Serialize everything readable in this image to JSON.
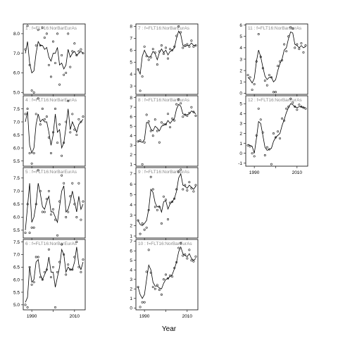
{
  "chart_data": [
    {
      "panel": "1",
      "type": "scatter",
      "title": "1 : f=FLT16:NorBarEurAs",
      "ylim": [
        4.9,
        8.5
      ],
      "yticks": [
        5.0,
        6.0,
        7.0,
        8.0
      ],
      "ytick_labels": [
        "5.0",
        "6.0",
        "7.0",
        "8.0"
      ],
      "x": [
        1987,
        1988,
        1989,
        1990,
        1991,
        1992,
        1993,
        1994,
        1995,
        1996,
        1997,
        1998,
        1999,
        2000,
        2001,
        2002,
        2003,
        2004,
        2005,
        2006,
        2007,
        2008,
        2009,
        2010,
        2011,
        2012,
        2013,
        2014
      ],
      "y": [
        7.2,
        8.4,
        6.4,
        5.1,
        5.0,
        7.4,
        8.2,
        7.4,
        8.3,
        7.8,
        8.0,
        6.4,
        5.8,
        7.6,
        6.5,
        8.0,
        5.4,
        6.9,
        5.9,
        6.0,
        8.0,
        6.3,
        7.1,
        7.5,
        6.9,
        7.1,
        7.2,
        7.0
      ],
      "fit": [
        7.0,
        7.6,
        6.5,
        6.0,
        6.1,
        7.0,
        7.6,
        7.4,
        7.4,
        7.2,
        7.3,
        6.8,
        6.6,
        7.0,
        7.0,
        7.3,
        6.4,
        6.5,
        6.2,
        6.4,
        7.2,
        6.8,
        7.0,
        7.1,
        6.9,
        7.0,
        7.1,
        7.0
      ]
    },
    {
      "panel": "4",
      "type": "scatter",
      "title": "4 : f=FLT16:NorBarEurAs",
      "ylim": [
        5.3,
        8.0
      ],
      "yticks": [
        5.5,
        6.0,
        6.5,
        7.0,
        7.5
      ],
      "ytick_labels": [
        "5.5",
        "6.0",
        "6.5",
        "7.0",
        "7.5"
      ],
      "x": [
        1987,
        1988,
        1989,
        1990,
        1991,
        1992,
        1993,
        1994,
        1995,
        1996,
        1997,
        1998,
        1999,
        2000,
        2001,
        2002,
        2003,
        2004,
        2005,
        2006,
        2007,
        2008,
        2009,
        2010,
        2011,
        2012,
        2013,
        2014
      ],
      "y": [
        7.3,
        7.5,
        5.8,
        5.4,
        5.8,
        7.3,
        7.9,
        6.9,
        7.5,
        7.1,
        7.2,
        6.4,
        5.8,
        6.6,
        7.5,
        6.2,
        6.9,
        5.7,
        6.2,
        7.0,
        7.8,
        6.6,
        7.3,
        6.7,
        6.5,
        7.1,
        7.0,
        7.2
      ],
      "fit": [
        7.0,
        7.4,
        6.1,
        5.8,
        6.0,
        6.9,
        7.3,
        7.0,
        7.1,
        7.0,
        7.0,
        6.6,
        6.1,
        6.5,
        7.3,
        6.6,
        6.7,
        6.0,
        6.2,
        6.8,
        7.5,
        6.7,
        7.0,
        6.8,
        6.6,
        6.9,
        7.0,
        7.1
      ]
    },
    {
      "panel": "5",
      "type": "scatter",
      "title": "5 : f=FLT16:NorBarEurAs",
      "ylim": [
        5.2,
        7.9
      ],
      "yticks": [
        5.5,
        6.0,
        6.5,
        7.0,
        7.5
      ],
      "ytick_labels": [
        "5.5",
        "6.0",
        "6.5",
        "7.0",
        "7.5"
      ],
      "x": [
        1987,
        1988,
        1989,
        1990,
        1991,
        1992,
        1993,
        1994,
        1995,
        1996,
        1997,
        1998,
        1999,
        2000,
        2001,
        2002,
        2003,
        2004,
        2005,
        2006,
        2007,
        2008,
        2009,
        2010,
        2011,
        2012,
        2013,
        2014
      ],
      "y": [
        5.4,
        6.5,
        5.4,
        5.6,
        5.6,
        6.5,
        7.8,
        7.0,
        6.2,
        6.2,
        6.7,
        7.0,
        6.1,
        6.3,
        5.9,
        5.3,
        6.6,
        7.6,
        7.3,
        6.0,
        6.2,
        6.8,
        7.3,
        6.5,
        6.0,
        7.3,
        5.9,
        6.6
      ],
      "fit": [
        5.5,
        6.4,
        7.3,
        5.8,
        6.0,
        6.5,
        7.3,
        6.9,
        6.4,
        6.3,
        6.6,
        6.8,
        6.2,
        6.2,
        6.0,
        5.8,
        6.4,
        7.0,
        7.2,
        6.2,
        6.3,
        6.6,
        7.0,
        6.6,
        6.2,
        6.8,
        6.3,
        6.5
      ]
    },
    {
      "panel": "6",
      "type": "scatter",
      "title": "6 : f=FLT16:NorBarEurAs",
      "ylim": [
        4.8,
        7.6
      ],
      "yticks": [
        5.0,
        5.5,
        6.0,
        6.5,
        7.0,
        7.5
      ],
      "ytick_labels": [
        "5.0",
        "5.5",
        "6.0",
        "6.5",
        "7.0",
        "7.5"
      ],
      "x": [
        1987,
        1988,
        1989,
        1990,
        1991,
        1992,
        1993,
        1994,
        1995,
        1996,
        1997,
        1998,
        1999,
        2000,
        2001,
        2002,
        2003,
        2004,
        2005,
        2006,
        2007,
        2008,
        2009,
        2010,
        2011,
        2012,
        2013,
        2014
      ],
      "y": [
        5.0,
        4.9,
        6.5,
        5.8,
        5.9,
        6.9,
        6.9,
        6.1,
        6.0,
        6.3,
        6.4,
        7.2,
        6.1,
        6.5,
        4.9,
        6.3,
        6.7,
        7.4,
        7.0,
        6.2,
        6.6,
        6.4,
        6.4,
        6.9,
        7.5,
        6.5,
        6.3,
        6.8
      ],
      "fit": [
        5.1,
        5.3,
        6.5,
        5.9,
        6.0,
        6.7,
        6.8,
        6.2,
        6.0,
        6.2,
        6.4,
        6.9,
        6.3,
        6.3,
        5.7,
        6.1,
        6.5,
        7.2,
        7.0,
        6.3,
        6.5,
        6.4,
        6.4,
        6.7,
        7.3,
        6.6,
        6.4,
        6.7
      ]
    },
    {
      "panel": "7",
      "type": "scatter",
      "title": "7 : f=FLT16:NorBarEurAs",
      "ylim": [
        2.3,
        8.2
      ],
      "yticks": [
        3,
        4,
        5,
        6,
        7,
        8
      ],
      "ytick_labels": [
        "3",
        "4",
        "5",
        "6",
        "7",
        "8"
      ],
      "x": [
        1987,
        1988,
        1989,
        1990,
        1991,
        1992,
        1993,
        1994,
        1995,
        1996,
        1997,
        1998,
        1999,
        2000,
        2001,
        2002,
        2003,
        2004,
        2005,
        2006,
        2007,
        2008,
        2009,
        2010,
        2011,
        2012,
        2013,
        2014
      ],
      "y": [
        4.4,
        2.6,
        3.8,
        6.3,
        5.5,
        5.2,
        5.4,
        6.1,
        5.8,
        4.8,
        5.9,
        6.4,
        5.7,
        6.2,
        5.3,
        6.1,
        6.0,
        6.3,
        7.2,
        8.0,
        7.5,
        6.2,
        6.4,
        6.5,
        6.3,
        6.8,
        6.3,
        6.4
      ],
      "fit": [
        4.4,
        4.0,
        5.5,
        6.0,
        5.6,
        5.4,
        5.5,
        5.9,
        5.7,
        5.2,
        5.8,
        6.1,
        5.8,
        6.0,
        5.6,
        5.9,
        6.0,
        6.2,
        7.0,
        7.6,
        7.3,
        6.4,
        6.3,
        6.4,
        6.4,
        6.6,
        6.4,
        6.4
      ]
    },
    {
      "panel": "8",
      "type": "scatter",
      "title": "8 : f=FLT16:NorBarEurAs",
      "ylim": [
        0.8,
        8.2
      ],
      "yticks": [
        1,
        2,
        3,
        4,
        5,
        6,
        7,
        8
      ],
      "ytick_labels": [
        "1",
        "2",
        "3",
        "4",
        "5",
        "6",
        "7",
        "8"
      ],
      "x": [
        1987,
        1988,
        1989,
        1990,
        1991,
        1992,
        1993,
        1994,
        1995,
        1996,
        1997,
        1998,
        1999,
        2000,
        2001,
        2002,
        2003,
        2004,
        2005,
        2006,
        2007,
        2008,
        2009,
        2010,
        2011,
        2012,
        2013,
        2014
      ],
      "y": [
        3.4,
        3.5,
        1.0,
        3.3,
        6.2,
        5.5,
        4.5,
        4.0,
        5.7,
        4.5,
        3.3,
        5.4,
        5.2,
        5.2,
        6.3,
        4.9,
        5.8,
        5.6,
        7.3,
        7.8,
        7.4,
        6.0,
        6.2,
        6.1,
        6.4,
        7.0,
        6.5,
        6.1
      ],
      "fit": [
        3.4,
        3.4,
        3.3,
        3.6,
        5.4,
        5.3,
        4.7,
        4.5,
        5.0,
        4.8,
        4.5,
        5.0,
        5.1,
        5.2,
        5.6,
        5.3,
        5.6,
        5.8,
        6.8,
        7.3,
        7.1,
        6.3,
        6.2,
        6.2,
        6.3,
        6.6,
        6.5,
        6.3
      ]
    },
    {
      "panel": "9",
      "type": "scatter",
      "title": "9 : f=FLT16:NorBarEurAs",
      "ylim": [
        0.8,
        7.6
      ],
      "yticks": [
        1,
        2,
        3,
        4,
        5,
        6,
        7
      ],
      "ytick_labels": [
        "1",
        "2",
        "3",
        "4",
        "5",
        "6",
        "7"
      ],
      "x": [
        1987,
        1988,
        1989,
        1990,
        1991,
        1992,
        1993,
        1994,
        1995,
        1996,
        1997,
        1998,
        1999,
        2000,
        2001,
        2002,
        2003,
        2004,
        2005,
        2006,
        2007,
        2008,
        2009,
        2010,
        2011,
        2012,
        2013,
        2014
      ],
      "y": [
        2.5,
        1.2,
        2.2,
        1.6,
        1.8,
        3.5,
        6.7,
        5.5,
        3.8,
        3.5,
        3.8,
        2.2,
        4.8,
        4.5,
        2.6,
        4.2,
        4.3,
        4.6,
        5.5,
        7.2,
        7.4,
        5.5,
        5.9,
        5.4,
        6.2,
        5.6,
        5.3,
        5.9
      ],
      "fit": [
        2.5,
        2.1,
        2.0,
        2.2,
        2.5,
        3.6,
        5.5,
        5.2,
        4.2,
        3.8,
        3.9,
        3.3,
        4.3,
        4.4,
        3.6,
        4.1,
        4.3,
        4.6,
        5.3,
        6.6,
        7.0,
        5.9,
        5.8,
        5.6,
        5.9,
        5.7,
        5.5,
        5.8
      ]
    },
    {
      "panel": "10",
      "type": "scatter",
      "title": "10 : f=FLT16:NorBarEurAs",
      "ylim": [
        -0.2,
        7.2
      ],
      "yticks": [
        0,
        1,
        2,
        3,
        4,
        5,
        6,
        7
      ],
      "ytick_labels": [
        "0",
        "1",
        "2",
        "3",
        "4",
        "5",
        "6",
        "7"
      ],
      "x": [
        1987,
        1988,
        1989,
        1990,
        1991,
        1992,
        1993,
        1994,
        1995,
        1996,
        1997,
        1998,
        1999,
        2000,
        2001,
        2002,
        2003,
        2004,
        2005,
        2006,
        2007,
        2008,
        2009,
        2010,
        2011,
        2012,
        2013,
        2014
      ],
      "y": [
        2.2,
        0.1,
        0.6,
        0.6,
        3.8,
        6.1,
        3.7,
        2.2,
        2.0,
        2.4,
        1.9,
        1.4,
        3.0,
        3.5,
        3.1,
        3.4,
        3.3,
        4.2,
        4.8,
        6.3,
        6.8,
        5.5,
        5.6,
        5.2,
        6.1,
        5.0,
        4.9,
        5.4
      ],
      "fit": [
        2.2,
        1.4,
        1.0,
        1.4,
        3.0,
        4.5,
        4.0,
        2.7,
        2.3,
        2.3,
        2.1,
        2.0,
        2.6,
        3.0,
        3.1,
        3.3,
        3.5,
        4.1,
        4.8,
        5.9,
        6.4,
        5.7,
        5.5,
        5.4,
        5.7,
        5.2,
        5.0,
        5.2
      ]
    },
    {
      "panel": "11",
      "type": "scatter",
      "title": "11 : f=FLT16:NorBarEurAs",
      "ylim": [
        -0.1,
        6.1
      ],
      "yticks": [
        0,
        1,
        2,
        3,
        4,
        5,
        6
      ],
      "ytick_labels": [
        "0",
        "1",
        "2",
        "3",
        "4",
        "5",
        "6"
      ],
      "x": [
        1987,
        1988,
        1989,
        1990,
        1991,
        1992,
        1993,
        1994,
        1995,
        1996,
        1997,
        1998,
        1999,
        2000,
        2001,
        2002,
        2003,
        2004,
        2005,
        2006,
        2007,
        2008,
        2009,
        2010,
        2011,
        2012,
        2013,
        2014
      ],
      "y": [
        1.6,
        1.4,
        0.3,
        0.8,
        2.8,
        5.2,
        3.2,
        2.2,
        1.1,
        0.7,
        1.6,
        1.4,
        0.1,
        0.1,
        2.4,
        2.8,
        2.9,
        4.3,
        3.7,
        5.0,
        5.8,
        5.7,
        4.0,
        4.3,
        3.9,
        4.4,
        3.6,
        4.2
      ],
      "fit": [
        1.4,
        1.2,
        0.9,
        1.3,
        2.8,
        3.8,
        3.2,
        2.3,
        1.5,
        1.2,
        1.4,
        1.4,
        1.0,
        1.2,
        2.0,
        2.6,
        3.0,
        3.8,
        4.0,
        4.8,
        5.4,
        5.3,
        4.3,
        4.2,
        4.0,
        4.2,
        4.0,
        4.1
      ]
    },
    {
      "panel": "12",
      "type": "scatter",
      "title": "12 : f=FLT16:NorBarEurAs",
      "ylim": [
        -1.3,
        5.8
      ],
      "yticks": [
        -1,
        0,
        1,
        2,
        3,
        4,
        5
      ],
      "ytick_labels": [
        "-1",
        "0",
        "1",
        "2",
        "3",
        "4",
        "5"
      ],
      "x": [
        1987,
        1988,
        1989,
        1990,
        1991,
        1992,
        1993,
        1994,
        1995,
        1996,
        1997,
        1998,
        1999,
        2000,
        2001,
        2002,
        2003,
        2004,
        2005,
        2006,
        2007,
        2008,
        2009,
        2010,
        2011,
        2012,
        2013,
        2014
      ],
      "y": [
        0.8,
        0.7,
        0.0,
        -0.3,
        1.8,
        4.5,
        3.4,
        2.1,
        -0.2,
        0.6,
        0.4,
        -1.1,
        2.0,
        1.6,
        2.2,
        1.5,
        3.5,
        3.3,
        4.5,
        4.7,
        5.5,
        5.1,
        4.7,
        4.4,
        4.9,
        4.7,
        4.6,
        4.5
      ],
      "fit": [
        0.9,
        0.8,
        0.7,
        0.0,
        1.5,
        3.2,
        3.0,
        1.8,
        0.6,
        0.3,
        0.4,
        0.5,
        1.2,
        1.6,
        1.8,
        2.0,
        2.8,
        3.4,
        4.1,
        4.6,
        5.0,
        4.9,
        4.7,
        4.6,
        4.7,
        4.7,
        4.6,
        4.6
      ]
    }
  ],
  "xaxis": {
    "label": "Year",
    "xlim": [
      1986,
      2015
    ],
    "ticks": [
      1990,
      2000,
      2010
    ],
    "tick_labels": [
      "1990",
      "",
      "2010"
    ]
  }
}
